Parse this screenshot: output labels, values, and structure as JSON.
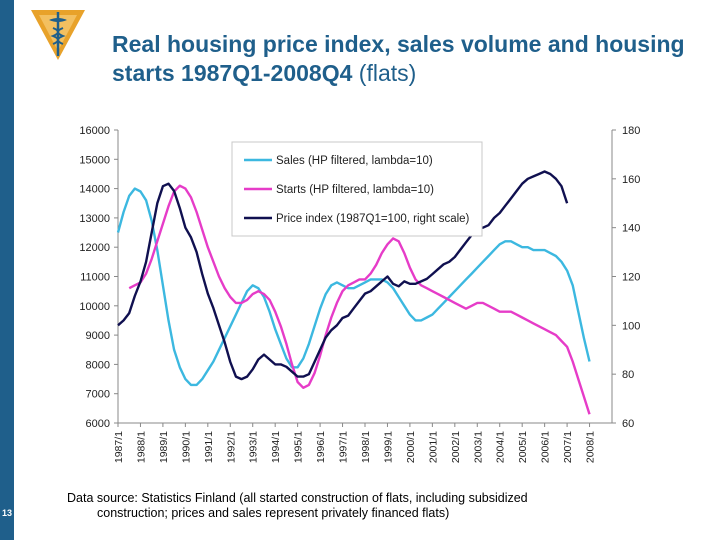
{
  "slide": {
    "number": "13"
  },
  "title": {
    "main": "Real housing price index, sales volume and housing starts 1987Q1-2008Q4",
    "suffix": " (flats)"
  },
  "source": {
    "line1": "Data source: Statistics Finland (all started construction of flats, including subsidized",
    "line2": "construction; prices and sales represent privately financed flats)"
  },
  "logo": {
    "icon": "caduceus-icon"
  },
  "chart_data": {
    "type": "line",
    "title": "",
    "xlabel": "",
    "ylabel": "",
    "ylabel_right": "",
    "ylim": [
      6000,
      16000
    ],
    "ylim_right": [
      60,
      180
    ],
    "yticks_left": [
      "16000",
      "15000",
      "14000",
      "13000",
      "12000",
      "11000",
      "10000",
      "9000",
      "8000",
      "7000",
      "6000"
    ],
    "yticks_right": [
      "180",
      "160",
      "140",
      "120",
      "100",
      "80",
      "60"
    ],
    "xticks": [
      "1987/1",
      "1988/1",
      "1989/1",
      "1990/1",
      "1991/1",
      "1992/1",
      "1993/1",
      "1994/1",
      "1995/1",
      "1996/1",
      "1997/1",
      "1998/1",
      "1999/1",
      "2000/1",
      "2001/1",
      "2002/1",
      "2003/1",
      "2004/1",
      "2005/1",
      "2006/1",
      "2007/1",
      "2008/1"
    ],
    "xrange": [
      1987.0,
      2009.0
    ],
    "grid": false,
    "legend_position": "top-center",
    "series": [
      {
        "name": "Sales (HP filtered, lambda=10)",
        "axis": "left",
        "color": "#3cb8e0",
        "points": [
          [
            1987.0,
            12500
          ],
          [
            1987.25,
            13200
          ],
          [
            1987.5,
            13750
          ],
          [
            1987.75,
            14000
          ],
          [
            1988.0,
            13900
          ],
          [
            1988.25,
            13600
          ],
          [
            1988.5,
            12900
          ],
          [
            1988.75,
            11900
          ],
          [
            1989.0,
            10700
          ],
          [
            1989.25,
            9500
          ],
          [
            1989.5,
            8500
          ],
          [
            1989.75,
            7900
          ],
          [
            1990.0,
            7500
          ],
          [
            1990.25,
            7300
          ],
          [
            1990.5,
            7300
          ],
          [
            1990.75,
            7500
          ],
          [
            1991.0,
            7800
          ],
          [
            1991.25,
            8100
          ],
          [
            1991.5,
            8500
          ],
          [
            1991.75,
            8900
          ],
          [
            1992.0,
            9300
          ],
          [
            1992.25,
            9700
          ],
          [
            1992.5,
            10100
          ],
          [
            1992.75,
            10500
          ],
          [
            1993.0,
            10700
          ],
          [
            1993.25,
            10600
          ],
          [
            1993.5,
            10300
          ],
          [
            1993.75,
            9800
          ],
          [
            1994.0,
            9200
          ],
          [
            1994.25,
            8700
          ],
          [
            1994.5,
            8200
          ],
          [
            1994.75,
            7900
          ],
          [
            1995.0,
            7900
          ],
          [
            1995.25,
            8200
          ],
          [
            1995.5,
            8700
          ],
          [
            1995.75,
            9300
          ],
          [
            1996.0,
            9900
          ],
          [
            1996.25,
            10400
          ],
          [
            1996.5,
            10700
          ],
          [
            1996.75,
            10800
          ],
          [
            1997.0,
            10700
          ],
          [
            1997.25,
            10600
          ],
          [
            1997.5,
            10600
          ],
          [
            1997.75,
            10700
          ],
          [
            1998.0,
            10800
          ],
          [
            1998.25,
            10900
          ],
          [
            1998.5,
            10900
          ],
          [
            1998.75,
            10900
          ],
          [
            1999.0,
            10800
          ],
          [
            1999.25,
            10600
          ],
          [
            1999.5,
            10300
          ],
          [
            1999.75,
            10000
          ],
          [
            2000.0,
            9700
          ],
          [
            2000.25,
            9500
          ],
          [
            2000.5,
            9500
          ],
          [
            2000.75,
            9600
          ],
          [
            2001.0,
            9700
          ],
          [
            2001.25,
            9900
          ],
          [
            2001.5,
            10100
          ],
          [
            2001.75,
            10300
          ],
          [
            2002.0,
            10500
          ],
          [
            2002.25,
            10700
          ],
          [
            2002.5,
            10900
          ],
          [
            2002.75,
            11100
          ],
          [
            2003.0,
            11300
          ],
          [
            2003.25,
            11500
          ],
          [
            2003.5,
            11700
          ],
          [
            2003.75,
            11900
          ],
          [
            2004.0,
            12100
          ],
          [
            2004.25,
            12200
          ],
          [
            2004.5,
            12200
          ],
          [
            2004.75,
            12100
          ],
          [
            2005.0,
            12000
          ],
          [
            2005.25,
            12000
          ],
          [
            2005.5,
            11900
          ],
          [
            2005.75,
            11900
          ],
          [
            2006.0,
            11900
          ],
          [
            2006.25,
            11800
          ],
          [
            2006.5,
            11700
          ],
          [
            2006.75,
            11500
          ],
          [
            2007.0,
            11200
          ],
          [
            2007.25,
            10700
          ],
          [
            2007.5,
            9800
          ],
          [
            2007.75,
            8900
          ],
          [
            2008.0,
            8100
          ]
        ]
      },
      {
        "name": "Starts (HP filtered, lambda=10)",
        "axis": "left",
        "color": "#e63cc8",
        "points": [
          [
            1987.5,
            10600
          ],
          [
            1987.75,
            10700
          ],
          [
            1988.0,
            10800
          ],
          [
            1988.25,
            11100
          ],
          [
            1988.5,
            11600
          ],
          [
            1988.75,
            12200
          ],
          [
            1989.0,
            12800
          ],
          [
            1989.25,
            13400
          ],
          [
            1989.5,
            13900
          ],
          [
            1989.75,
            14100
          ],
          [
            1990.0,
            14000
          ],
          [
            1990.25,
            13700
          ],
          [
            1990.5,
            13200
          ],
          [
            1990.75,
            12600
          ],
          [
            1991.0,
            12000
          ],
          [
            1991.25,
            11500
          ],
          [
            1991.5,
            11000
          ],
          [
            1991.75,
            10600
          ],
          [
            1992.0,
            10300
          ],
          [
            1992.25,
            10100
          ],
          [
            1992.5,
            10100
          ],
          [
            1992.75,
            10200
          ],
          [
            1993.0,
            10400
          ],
          [
            1993.25,
            10500
          ],
          [
            1993.5,
            10400
          ],
          [
            1993.75,
            10200
          ],
          [
            1994.0,
            9800
          ],
          [
            1994.25,
            9300
          ],
          [
            1994.5,
            8700
          ],
          [
            1994.75,
            8000
          ],
          [
            1995.0,
            7400
          ],
          [
            1995.25,
            7200
          ],
          [
            1995.5,
            7300
          ],
          [
            1995.75,
            7700
          ],
          [
            1996.0,
            8300
          ],
          [
            1996.25,
            9000
          ],
          [
            1996.5,
            9600
          ],
          [
            1996.75,
            10100
          ],
          [
            1997.0,
            10500
          ],
          [
            1997.25,
            10700
          ],
          [
            1997.5,
            10800
          ],
          [
            1997.75,
            10900
          ],
          [
            1998.0,
            10900
          ],
          [
            1998.25,
            11100
          ],
          [
            1998.5,
            11400
          ],
          [
            1998.75,
            11800
          ],
          [
            1999.0,
            12100
          ],
          [
            1999.25,
            12300
          ],
          [
            1999.5,
            12200
          ],
          [
            1999.75,
            11800
          ],
          [
            2000.0,
            11300
          ],
          [
            2000.25,
            10900
          ],
          [
            2000.5,
            10700
          ],
          [
            2000.75,
            10600
          ],
          [
            2001.0,
            10500
          ],
          [
            2001.25,
            10400
          ],
          [
            2001.5,
            10300
          ],
          [
            2001.75,
            10200
          ],
          [
            2002.0,
            10100
          ],
          [
            2002.25,
            10000
          ],
          [
            2002.5,
            9900
          ],
          [
            2002.75,
            10000
          ],
          [
            2003.0,
            10100
          ],
          [
            2003.25,
            10100
          ],
          [
            2003.5,
            10000
          ],
          [
            2003.75,
            9900
          ],
          [
            2004.0,
            9800
          ],
          [
            2004.25,
            9800
          ],
          [
            2004.5,
            9800
          ],
          [
            2004.75,
            9700
          ],
          [
            2005.0,
            9600
          ],
          [
            2005.25,
            9500
          ],
          [
            2005.5,
            9400
          ],
          [
            2005.75,
            9300
          ],
          [
            2006.0,
            9200
          ],
          [
            2006.25,
            9100
          ],
          [
            2006.5,
            9000
          ],
          [
            2006.75,
            8800
          ],
          [
            2007.0,
            8600
          ],
          [
            2007.25,
            8100
          ],
          [
            2007.5,
            7500
          ],
          [
            2007.75,
            6900
          ],
          [
            2008.0,
            6300
          ]
        ]
      },
      {
        "name": "Price index (1987Q1=100, right scale)",
        "axis": "right",
        "color": "#101050",
        "points": [
          [
            1987.0,
            100
          ],
          [
            1987.25,
            102
          ],
          [
            1987.5,
            105
          ],
          [
            1987.75,
            112
          ],
          [
            1988.0,
            118
          ],
          [
            1988.25,
            126
          ],
          [
            1988.5,
            138
          ],
          [
            1988.75,
            150
          ],
          [
            1989.0,
            157
          ],
          [
            1989.25,
            158
          ],
          [
            1989.5,
            155
          ],
          [
            1989.75,
            148
          ],
          [
            1990.0,
            140
          ],
          [
            1990.25,
            136
          ],
          [
            1990.5,
            130
          ],
          [
            1990.75,
            121
          ],
          [
            1991.0,
            113
          ],
          [
            1991.25,
            107
          ],
          [
            1991.5,
            100
          ],
          [
            1991.75,
            93
          ],
          [
            1992.0,
            85
          ],
          [
            1992.25,
            79
          ],
          [
            1992.5,
            78
          ],
          [
            1992.75,
            79
          ],
          [
            1993.0,
            82
          ],
          [
            1993.25,
            86
          ],
          [
            1993.5,
            88
          ],
          [
            1993.75,
            86
          ],
          [
            1994.0,
            84
          ],
          [
            1994.25,
            84
          ],
          [
            1994.5,
            83
          ],
          [
            1994.75,
            81
          ],
          [
            1995.0,
            79
          ],
          [
            1995.25,
            79
          ],
          [
            1995.5,
            80
          ],
          [
            1995.75,
            85
          ],
          [
            1996.0,
            90
          ],
          [
            1996.25,
            95
          ],
          [
            1996.5,
            98
          ],
          [
            1996.75,
            100
          ],
          [
            1997.0,
            103
          ],
          [
            1997.25,
            104
          ],
          [
            1997.5,
            107
          ],
          [
            1997.75,
            110
          ],
          [
            1998.0,
            113
          ],
          [
            1998.25,
            114
          ],
          [
            1998.5,
            116
          ],
          [
            1998.75,
            118
          ],
          [
            1999.0,
            120
          ],
          [
            1999.25,
            117
          ],
          [
            1999.5,
            116
          ],
          [
            1999.75,
            118
          ],
          [
            2000.0,
            117
          ],
          [
            2000.25,
            117
          ],
          [
            2000.5,
            118
          ],
          [
            2000.75,
            119
          ],
          [
            2001.0,
            121
          ],
          [
            2001.25,
            123
          ],
          [
            2001.5,
            125
          ],
          [
            2001.75,
            126
          ],
          [
            2002.0,
            128
          ],
          [
            2002.25,
            131
          ],
          [
            2002.5,
            134
          ],
          [
            2002.75,
            137
          ],
          [
            2003.0,
            140
          ],
          [
            2003.25,
            140
          ],
          [
            2003.5,
            141
          ],
          [
            2003.75,
            144
          ],
          [
            2004.0,
            146
          ],
          [
            2004.25,
            149
          ],
          [
            2004.5,
            152
          ],
          [
            2004.75,
            155
          ],
          [
            2005.0,
            158
          ],
          [
            2005.25,
            160
          ],
          [
            2005.5,
            161
          ],
          [
            2005.75,
            162
          ],
          [
            2006.0,
            163
          ],
          [
            2006.25,
            162
          ],
          [
            2006.5,
            160
          ],
          [
            2006.75,
            157
          ],
          [
            2007.0,
            150
          ]
        ]
      }
    ]
  }
}
